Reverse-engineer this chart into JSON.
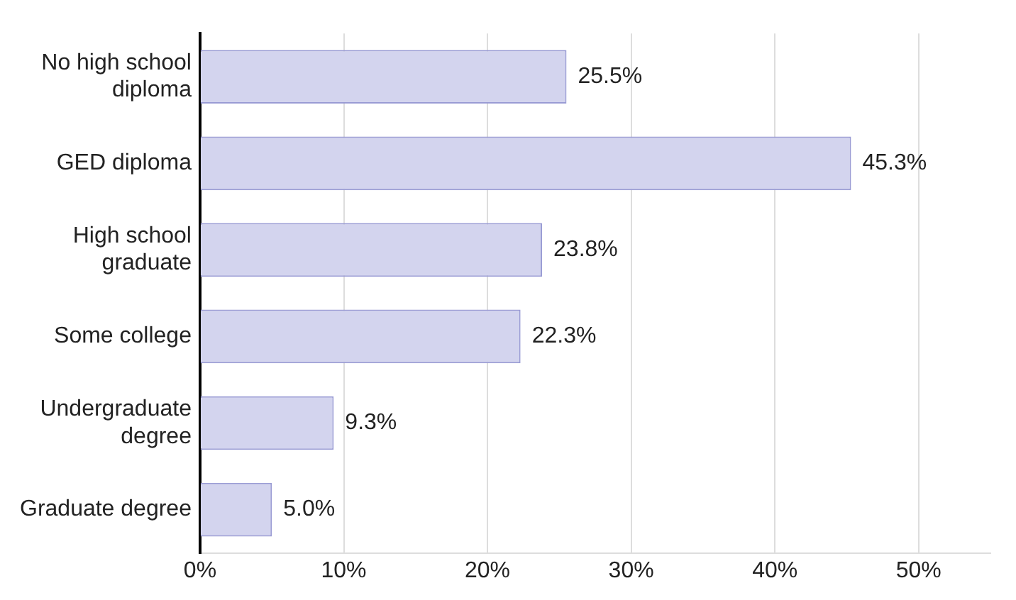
{
  "chart_data": {
    "type": "bar",
    "orientation": "horizontal",
    "categories": [
      "No high school\ndiploma",
      "GED diploma",
      "High school\ngraduate",
      "Some college",
      "Undergraduate\ndegree",
      "Graduate degree"
    ],
    "values": [
      25.5,
      45.3,
      23.8,
      22.3,
      9.3,
      5.0
    ],
    "value_labels": [
      "25.5%",
      "45.3%",
      "23.8%",
      "22.3%",
      "9.3%",
      "5.0%"
    ],
    "color": "#d3d4ee",
    "xlim": [
      0,
      55
    ],
    "xticks": [
      {
        "value": 0,
        "label": "0%"
      },
      {
        "value": 10,
        "label": "10%"
      },
      {
        "value": 20,
        "label": "20%"
      },
      {
        "value": 30,
        "label": "30%"
      },
      {
        "value": 40,
        "label": "40%"
      },
      {
        "value": 50,
        "label": "50%"
      }
    ],
    "grid": "x",
    "legend": false
  }
}
